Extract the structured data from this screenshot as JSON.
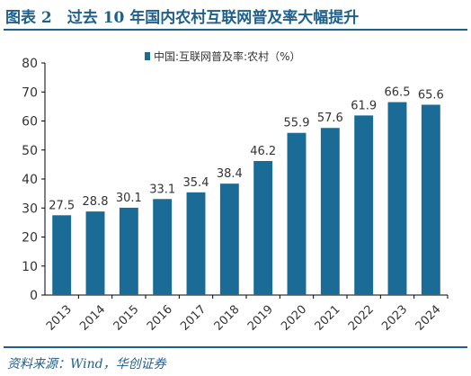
{
  "figure": {
    "title": "图表 2　过去 10 年国内农村互联网普及率大幅提升",
    "source": "资料来源：Wind，华创证券"
  },
  "colors": {
    "bar": "#1a6b96",
    "accent": "#1f5f8b",
    "axis": "#000000",
    "text": "#333333"
  },
  "chart_data": {
    "type": "bar",
    "categories": [
      "2013",
      "2014",
      "2015",
      "2016",
      "2017",
      "2018",
      "2019",
      "2020",
      "2021",
      "2022",
      "2023",
      "2024"
    ],
    "series": [
      {
        "name": "中国:互联网普及率:农村（%）",
        "values": [
          27.5,
          28.8,
          30.1,
          33.1,
          35.4,
          38.4,
          46.2,
          55.9,
          57.6,
          61.9,
          66.5,
          65.6
        ]
      }
    ],
    "ylim": [
      0,
      80
    ],
    "yticks": [
      "0",
      "10",
      "20",
      "30",
      "40",
      "50",
      "60",
      "70",
      "80"
    ],
    "data_labels": [
      "27.5",
      "28.8",
      "30.1",
      "33.1",
      "35.4",
      "38.4",
      "46.2",
      "55.9",
      "57.6",
      "61.9",
      "66.5",
      "65.6"
    ],
    "grid": false,
    "legend": "top-center"
  }
}
